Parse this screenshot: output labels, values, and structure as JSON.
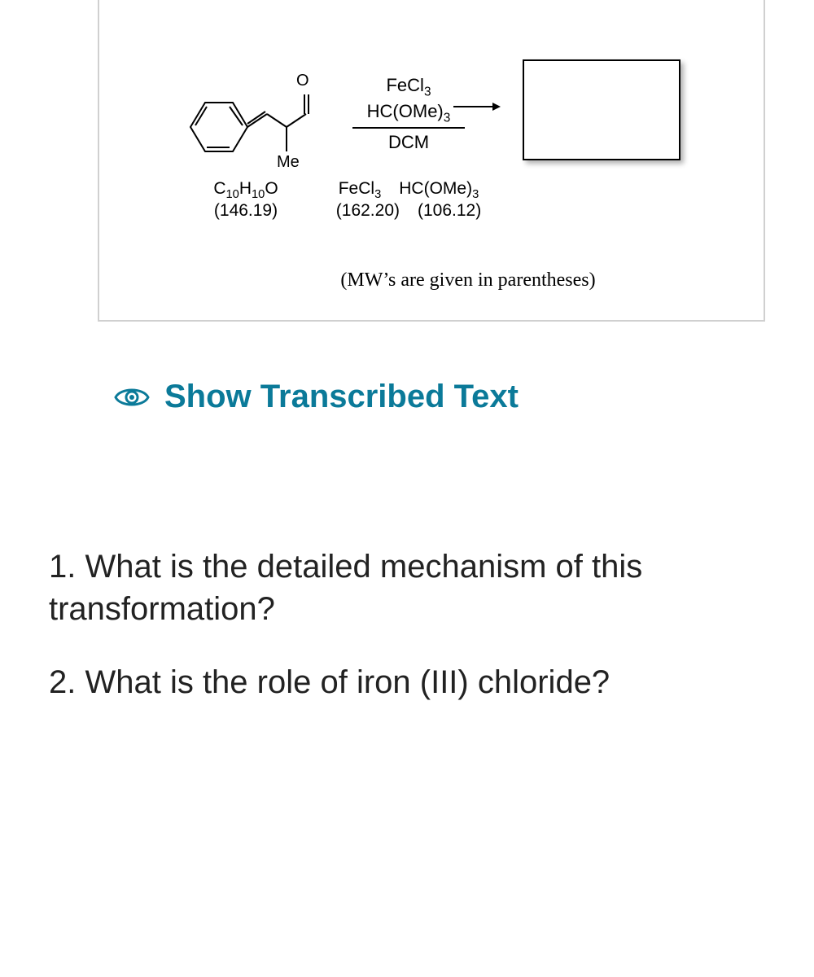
{
  "scheme": {
    "starting_material": {
      "formula_html": "C<sub>10</sub>H<sub>10</sub>O",
      "mw": "(146.19)",
      "substituent_label": "Me",
      "carbonyl_label": "O"
    },
    "reagents": {
      "line1_html": "FeCl<sub>3</sub>",
      "line2_html": "HC(OMe)<sub>3</sub>",
      "solvent": "DCM",
      "r1_name_html": "FeCl<sub>3</sub>",
      "r1_mw": "(162.20)",
      "r2_name_html": "HC(OMe)<sub>3</sub>",
      "r2_mw": "(106.12)"
    },
    "note": "(MW’s are given in parentheses)",
    "colors": {
      "border": "#d0d0d0",
      "text": "#000000",
      "link": "#0b7a99",
      "shadow": "rgba(0,0,0,0.3)"
    }
  },
  "transcribe_label": "Show Transcribed Text",
  "questions": {
    "q1": "1. What is the detailed mechanism of this transformation?",
    "q2": "2. What is the role of iron (III) chloride?"
  }
}
